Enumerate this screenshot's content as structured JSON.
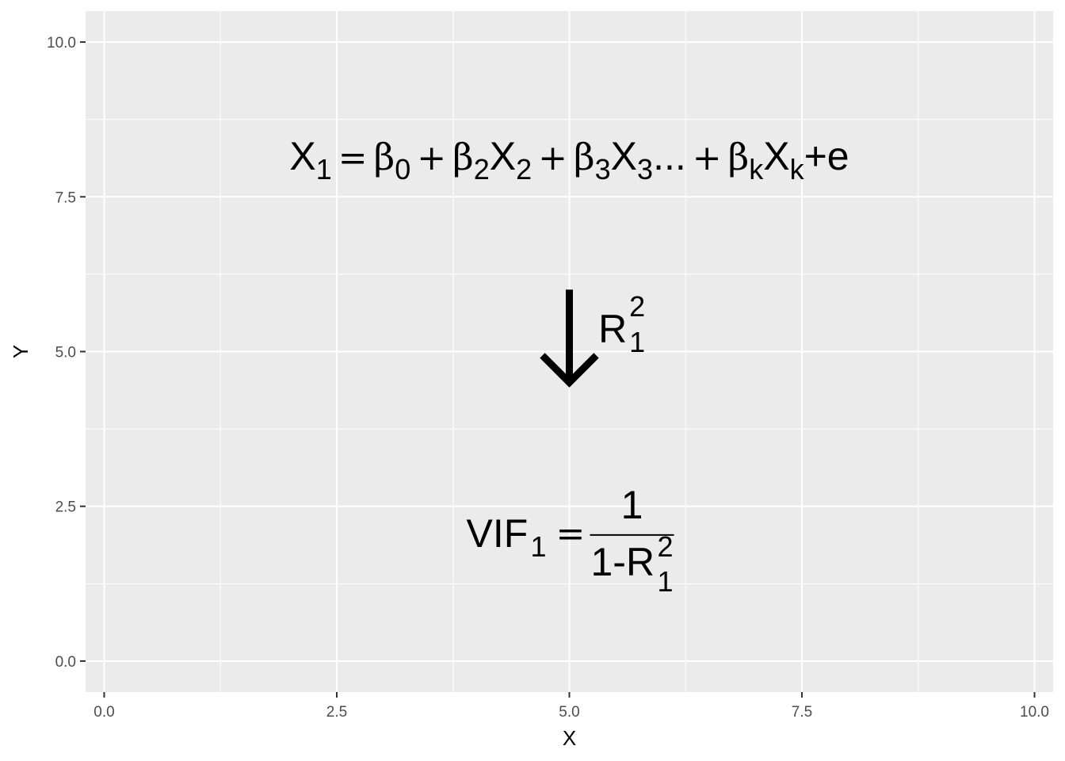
{
  "chart_data": {
    "type": "scatter",
    "xlabel": "X",
    "ylabel": "Y",
    "xlim": [
      -0.2,
      10.2
    ],
    "ylim": [
      -0.5,
      10.5
    ],
    "x_ticks": [
      {
        "value": 0.0,
        "label": "0.0"
      },
      {
        "value": 2.5,
        "label": "2.5"
      },
      {
        "value": 5.0,
        "label": "5.0"
      },
      {
        "value": 7.5,
        "label": "7.5"
      },
      {
        "value": 10.0,
        "label": "10.0"
      }
    ],
    "y_ticks": [
      {
        "value": 0.0,
        "label": "0.0"
      },
      {
        "value": 2.5,
        "label": "2.5"
      },
      {
        "value": 5.0,
        "label": "5.0"
      },
      {
        "value": 7.5,
        "label": "7.5"
      },
      {
        "value": 10.0,
        "label": "10.0"
      }
    ],
    "grid": true,
    "background_color": "#ebebeb",
    "grid_color": "#ffffff",
    "annotations": [
      {
        "kind": "equation",
        "name": "regression-equation",
        "x": 5.0,
        "y": 8.0,
        "parts": {
          "x1": "X",
          "x1_sub": "1",
          "eq": "=",
          "b0": "β",
          "b0_sub": "0",
          "plus1": "+",
          "b2": "β",
          "b2_sub": "2",
          "x2": "X",
          "x2_sub": "2",
          "plus2": "+",
          "b3": "β",
          "b3_sub": "3",
          "x3": "X",
          "x3_sub": "3",
          "ellipsis": "...",
          "plus3": "+",
          "bk": "β",
          "bk_sub": "k",
          "xk": "X",
          "xk_sub": "k",
          "tail": "+e"
        }
      },
      {
        "kind": "arrow",
        "name": "down-arrow",
        "x": 5.0,
        "y_start": 6.0,
        "y_end": 4.45,
        "color": "#000000"
      },
      {
        "kind": "equation",
        "name": "r-squared-label",
        "x": 5.9,
        "y": 5.25,
        "parts": {
          "base": "R",
          "sup": "2",
          "sub": "1"
        }
      },
      {
        "kind": "equation",
        "name": "vif-equation",
        "x": 5.0,
        "y": 2.05,
        "parts": {
          "lhs": "VIF",
          "lhs_sub": "1",
          "eq": "=",
          "numerator": "1",
          "den_prefix": "1-R",
          "den_sup": "2",
          "den_sub": "1"
        }
      }
    ]
  }
}
